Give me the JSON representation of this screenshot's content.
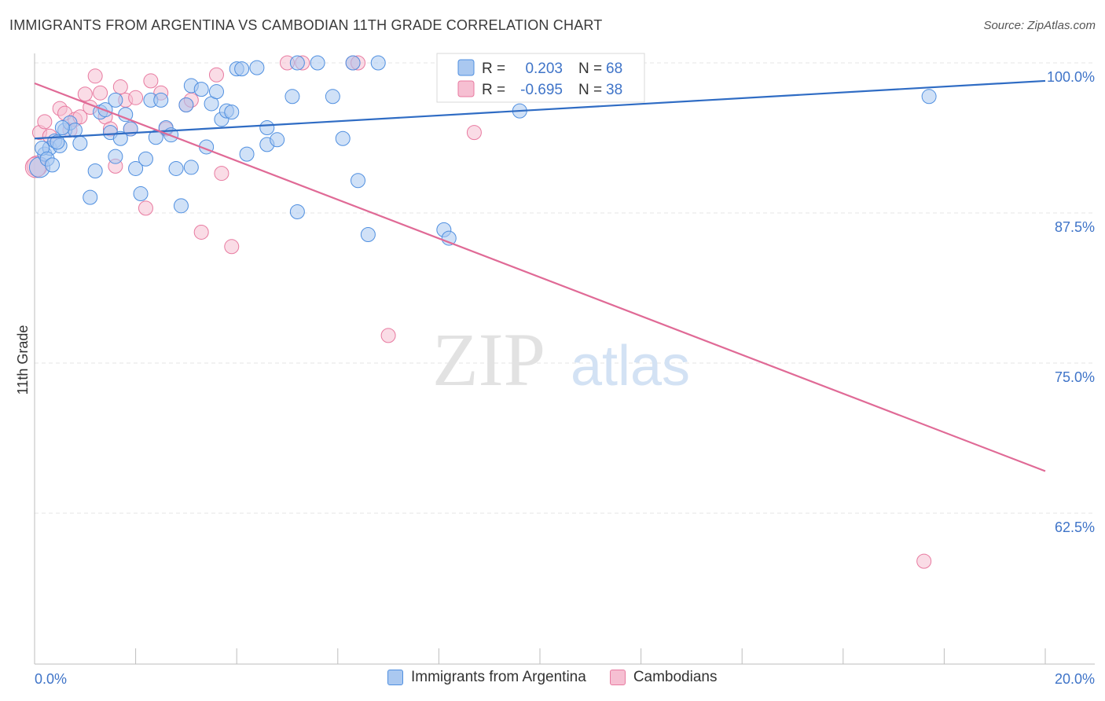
{
  "title": "IMMIGRANTS FROM ARGENTINA VS CAMBODIAN 11TH GRADE CORRELATION CHART",
  "source": "Source: ZipAtlas.com",
  "watermark": {
    "zip": "ZIP",
    "atlas": "atlas"
  },
  "colors": {
    "blue": "#4f8fe0",
    "blue_fill": "#aac8f0",
    "pink": "#e87aa0",
    "pink_fill": "#f6bfd2",
    "blue_line": "#2f6cc4",
    "pink_line": "#e06a96",
    "label_blue": "#3f74c8"
  },
  "stats": [
    {
      "r_label": "R =",
      "r_value": "0.203",
      "n_label": "N =",
      "n_value": "68"
    },
    {
      "r_label": "R =",
      "r_value": "-0.695",
      "n_label": "N =",
      "n_value": "38"
    }
  ],
  "legend": [
    {
      "label": "Immigrants from Argentina"
    },
    {
      "label": "Cambodians"
    }
  ],
  "chart_data": {
    "type": "scatter",
    "title": "IMMIGRANTS FROM ARGENTINA VS CAMBODIAN 11TH GRADE CORRELATION CHART",
    "xlabel": "",
    "ylabel": "11th Grade",
    "xlim": [
      0,
      20
    ],
    "ylim": [
      50,
      103
    ],
    "x_tick_labels": [
      "0.0%",
      "20.0%"
    ],
    "y_ticks": [
      62.5,
      75.0,
      87.5,
      100.0
    ],
    "y_tick_labels": [
      "62.5%",
      "75.0%",
      "87.5%",
      "100.0%"
    ],
    "grid": true,
    "legend_position": "bottom",
    "series": [
      {
        "name": "Immigrants from Argentina",
        "trend": {
          "x": [
            0,
            20
          ],
          "y": [
            93.7,
            98.5
          ]
        },
        "points": [
          [
            0.1,
            91.3
          ],
          [
            0.2,
            92.4
          ],
          [
            0.3,
            92.9
          ],
          [
            0.4,
            93.5
          ],
          [
            0.5,
            93.1
          ],
          [
            0.6,
            94.4
          ],
          [
            0.7,
            95.0
          ],
          [
            0.8,
            94.4
          ],
          [
            0.9,
            93.3
          ],
          [
            1.1,
            88.8
          ],
          [
            1.2,
            91.0
          ],
          [
            1.3,
            95.9
          ],
          [
            1.4,
            96.1
          ],
          [
            1.5,
            94.2
          ],
          [
            1.6,
            92.2
          ],
          [
            1.6,
            96.9
          ],
          [
            1.7,
            93.7
          ],
          [
            1.8,
            95.7
          ],
          [
            1.9,
            94.5
          ],
          [
            2.0,
            91.2
          ],
          [
            2.1,
            89.1
          ],
          [
            2.2,
            92.0
          ],
          [
            2.3,
            96.9
          ],
          [
            2.4,
            93.8
          ],
          [
            2.5,
            96.9
          ],
          [
            2.6,
            94.6
          ],
          [
            2.7,
            94.0
          ],
          [
            2.8,
            91.2
          ],
          [
            2.9,
            88.1
          ],
          [
            3.0,
            96.5
          ],
          [
            3.1,
            91.3
          ],
          [
            3.1,
            98.1
          ],
          [
            3.3,
            97.8
          ],
          [
            3.4,
            93.0
          ],
          [
            3.5,
            96.6
          ],
          [
            3.6,
            97.6
          ],
          [
            3.7,
            95.3
          ],
          [
            3.8,
            96.0
          ],
          [
            3.9,
            95.9
          ],
          [
            4.0,
            99.5
          ],
          [
            4.1,
            99.5
          ],
          [
            4.2,
            92.4
          ],
          [
            4.4,
            99.6
          ],
          [
            4.6,
            93.2
          ],
          [
            4.6,
            94.6
          ],
          [
            4.8,
            93.6
          ],
          [
            5.1,
            97.2
          ],
          [
            5.2,
            100.0
          ],
          [
            5.2,
            87.6
          ],
          [
            5.6,
            100.0
          ],
          [
            5.9,
            97.2
          ],
          [
            6.1,
            93.7
          ],
          [
            6.3,
            100.0
          ],
          [
            6.4,
            90.2
          ],
          [
            6.6,
            85.7
          ],
          [
            6.8,
            100.0
          ],
          [
            8.1,
            86.1
          ],
          [
            8.2,
            85.4
          ],
          [
            8.2,
            100.0
          ],
          [
            9.0,
            100.0
          ],
          [
            9.6,
            96.0
          ],
          [
            10.7,
            97.4
          ],
          [
            17.7,
            97.2
          ],
          [
            0.15,
            92.9
          ],
          [
            0.25,
            92.0
          ],
          [
            0.35,
            91.5
          ],
          [
            0.45,
            93.4
          ],
          [
            0.55,
            94.6
          ]
        ]
      },
      {
        "name": "Cambodians",
        "trend": {
          "x": [
            0,
            20
          ],
          "y": [
            98.3,
            66.0
          ]
        },
        "points": [
          [
            0.05,
            91.4
          ],
          [
            0.1,
            94.2
          ],
          [
            0.2,
            95.1
          ],
          [
            0.3,
            93.9
          ],
          [
            0.5,
            96.2
          ],
          [
            0.6,
            95.8
          ],
          [
            0.7,
            94.4
          ],
          [
            0.8,
            95.3
          ],
          [
            0.9,
            95.5
          ],
          [
            1.1,
            96.3
          ],
          [
            1.2,
            98.9
          ],
          [
            1.3,
            97.5
          ],
          [
            1.4,
            95.5
          ],
          [
            1.5,
            94.5
          ],
          [
            1.6,
            91.4
          ],
          [
            1.7,
            98.0
          ],
          [
            1.8,
            96.9
          ],
          [
            1.9,
            94.5
          ],
          [
            2.0,
            97.1
          ],
          [
            2.2,
            87.9
          ],
          [
            2.3,
            98.5
          ],
          [
            2.5,
            97.5
          ],
          [
            2.6,
            94.5
          ],
          [
            3.0,
            96.5
          ],
          [
            3.1,
            96.9
          ],
          [
            3.3,
            85.9
          ],
          [
            3.6,
            99.0
          ],
          [
            3.7,
            90.8
          ],
          [
            3.9,
            84.7
          ],
          [
            5.0,
            100.0
          ],
          [
            5.3,
            100.0
          ],
          [
            6.3,
            100.0
          ],
          [
            6.4,
            100.0
          ],
          [
            7.0,
            77.3
          ],
          [
            8.7,
            94.2
          ],
          [
            17.6,
            58.5
          ],
          [
            0.02,
            91.3
          ],
          [
            1.0,
            97.4
          ]
        ]
      }
    ]
  }
}
